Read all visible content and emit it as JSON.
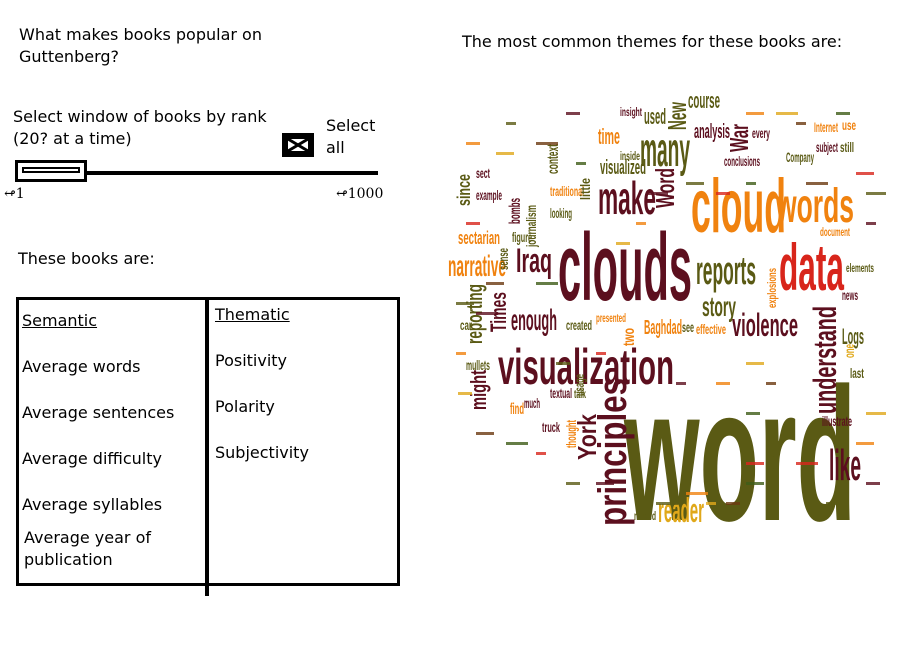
{
  "header": {
    "question": "What makes books popular on Guttenberg?"
  },
  "rank_selector": {
    "label": "Select window of books by rank (20? at a time)",
    "select_all_label": "Select all",
    "min_label": "1",
    "max_label": "1000"
  },
  "books_section": {
    "title": "These books are:",
    "semantic": {
      "header": "Semantic",
      "items": [
        "Average words",
        "Average sentences",
        "Average difficulty",
        "Average syllables",
        "Average year of publication"
      ]
    },
    "thematic": {
      "header": "Thematic",
      "items": [
        "Positivity",
        "Polarity",
        "Subjectivity"
      ]
    }
  },
  "themes": {
    "title": "The most common themes for these books are:"
  },
  "word_cloud": {
    "colors": {
      "maroon": "#5c0f1e",
      "olive": "#5a5a14",
      "orange": "#f0820f",
      "red": "#d8251b",
      "gold": "#e0a81a",
      "brown": "#6b3a10",
      "green": "#3e5c18"
    },
    "words": [
      {
        "text": "word"
      },
      {
        "text": "clouds"
      },
      {
        "text": "visualization"
      },
      {
        "text": "cloud"
      },
      {
        "text": "data"
      },
      {
        "text": "words"
      },
      {
        "text": "make"
      },
      {
        "text": "many"
      },
      {
        "text": "reports"
      },
      {
        "text": "like"
      },
      {
        "text": "principles"
      },
      {
        "text": "violence"
      },
      {
        "text": "understand"
      },
      {
        "text": "narrative"
      },
      {
        "text": "Iraq"
      },
      {
        "text": "enough"
      },
      {
        "text": "story"
      },
      {
        "text": "reader"
      },
      {
        "text": "York"
      },
      {
        "text": "Times"
      },
      {
        "text": "reporting"
      },
      {
        "text": "might"
      },
      {
        "text": "sectarian"
      },
      {
        "text": "New"
      },
      {
        "text": "War"
      },
      {
        "text": "course"
      },
      {
        "text": "analysis"
      },
      {
        "text": "used"
      },
      {
        "text": "time"
      },
      {
        "text": "visualized"
      },
      {
        "text": "Word"
      },
      {
        "text": "Baghdad"
      },
      {
        "text": "Logs"
      },
      {
        "text": "since"
      },
      {
        "text": "example"
      },
      {
        "text": "journalism"
      },
      {
        "text": "bombs"
      },
      {
        "text": "traditional"
      },
      {
        "text": "looking"
      },
      {
        "text": "conclusions"
      },
      {
        "text": "Company"
      },
      {
        "text": "subject"
      },
      {
        "text": "still"
      },
      {
        "text": "Internet"
      },
      {
        "text": "explosions"
      },
      {
        "text": "document"
      },
      {
        "text": "elements"
      },
      {
        "text": "news"
      },
      {
        "text": "compare"
      },
      {
        "text": "illustrate"
      },
      {
        "text": "last"
      },
      {
        "text": "thought"
      },
      {
        "text": "usage"
      },
      {
        "text": "textual"
      },
      {
        "text": "talk"
      },
      {
        "text": "truck"
      },
      {
        "text": "much"
      },
      {
        "text": "find"
      },
      {
        "text": "created"
      },
      {
        "text": "presented"
      },
      {
        "text": "effective"
      },
      {
        "text": "two"
      },
      {
        "text": "see"
      },
      {
        "text": "figure"
      },
      {
        "text": "sense"
      },
      {
        "text": "named"
      },
      {
        "text": "mullets"
      },
      {
        "text": "car"
      },
      {
        "text": "context"
      },
      {
        "text": "little"
      },
      {
        "text": "inside"
      },
      {
        "text": "insight"
      },
      {
        "text": "every"
      },
      {
        "text": "sect"
      },
      {
        "text": "one"
      },
      {
        "text": "use"
      }
    ]
  }
}
